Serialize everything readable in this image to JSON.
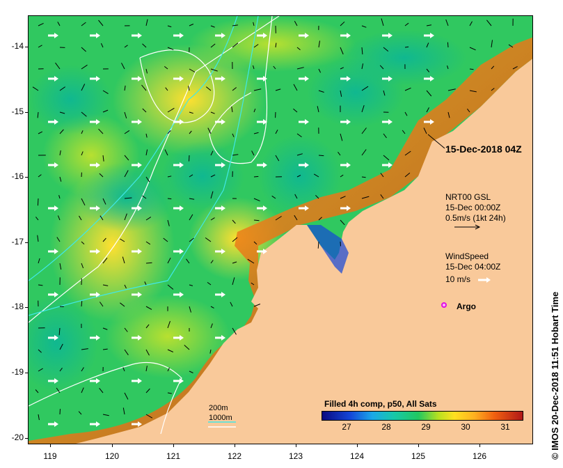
{
  "map": {
    "y_ticks": [
      "-14",
      "-15",
      "-16",
      "-17",
      "-18",
      "-19",
      "-20"
    ],
    "x_ticks": [
      "119",
      "120",
      "121",
      "122",
      "123",
      "124",
      "125",
      "126"
    ],
    "land_color": "#f9c99a",
    "contour_200_color": "#40e8e8",
    "contour_1000_color": "#ffffff"
  },
  "overlay": {
    "date_label": "15-Dec-2018 04Z",
    "current_title": "NRT00 GSL",
    "current_time": "15-Dec 00:00Z",
    "current_scale": "0.5m/s (1kt 24h)",
    "wind_title": "WindSpeed",
    "wind_time": "15-Dec 04:00Z",
    "wind_scale": "10 m/s",
    "argo_label": "Argo",
    "contour_200_label": "200m",
    "contour_1000_label": "1000m"
  },
  "colorbar": {
    "title": "Filled 4h comp, p50, All Sats",
    "ticks": [
      "27",
      "28",
      "29",
      "30",
      "31"
    ]
  },
  "credit": "© IMOS 20-Dec-2018 11:51 Hobart Time"
}
